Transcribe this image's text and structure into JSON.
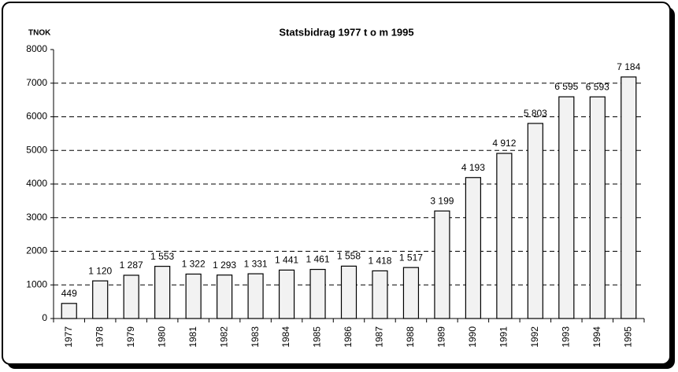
{
  "chart_data": {
    "type": "bar",
    "title": "Statsbidrag 1977 t o m 1995",
    "y_label": "TNOK",
    "categories": [
      "1977",
      "1978",
      "1979",
      "1980",
      "1981",
      "1982",
      "1983",
      "1984",
      "1985",
      "1986",
      "1987",
      "1988",
      "1989",
      "1990",
      "1991",
      "1992",
      "1993",
      "1994",
      "1995"
    ],
    "values": [
      449,
      1120,
      1287,
      1553,
      1322,
      1293,
      1331,
      1441,
      1461,
      1558,
      1418,
      1517,
      3199,
      4193,
      4912,
      5803,
      6595,
      6593,
      7184
    ],
    "value_labels": [
      "449",
      "1 120",
      "1 287",
      "1 553",
      "1 322",
      "1 293",
      "1 331",
      "1 441",
      "1 461",
      "1 558",
      "1 418",
      "1 517",
      "3 199",
      "4 193",
      "4 912",
      "5 803",
      "6 595",
      "6 593",
      "7 184"
    ],
    "color": "#f2f2f2",
    "ylim": [
      0,
      8000
    ],
    "yticks": [
      0,
      1000,
      2000,
      3000,
      4000,
      5000,
      6000,
      7000,
      8000
    ],
    "grid": true
  }
}
